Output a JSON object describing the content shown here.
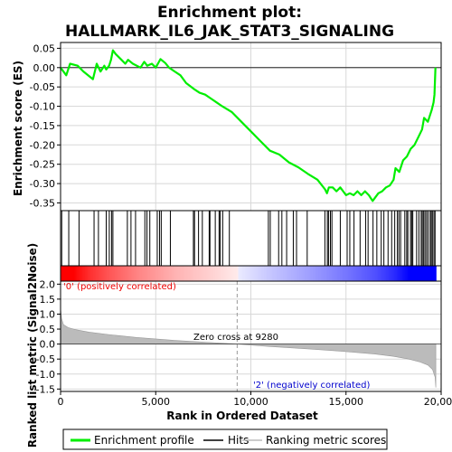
{
  "chart_data": {
    "type": "line",
    "title_line1": "Enrichment plot:",
    "title_line2": "HALLMARK_IL6_JAK_STAT3_SIGNALING",
    "es_panel": {
      "ylabel": "Enrichment score (ES)",
      "ylim": [
        -0.37,
        0.065
      ],
      "yticks": [
        0.05,
        0.0,
        -0.05,
        -0.1,
        -0.15,
        -0.2,
        -0.25,
        -0.3,
        -0.35
      ],
      "ytick_labels": [
        "0.05",
        "0.00",
        "-0.05",
        "-0.10",
        "-0.15",
        "-0.20",
        "-0.25",
        "-0.30",
        "-0.35"
      ],
      "x": [
        0,
        300,
        500,
        900,
        1200,
        1700,
        1900,
        2100,
        2300,
        2400,
        2550,
        2650,
        2750,
        2900,
        3200,
        3400,
        3550,
        3800,
        4200,
        4400,
        4550,
        4800,
        5000,
        5250,
        5500,
        5700,
        6000,
        6300,
        6600,
        7000,
        7300,
        7600,
        7900,
        8200,
        8500,
        9000,
        9500,
        10000,
        10500,
        11000,
        11500,
        12000,
        12500,
        13000,
        13500,
        13900,
        14000,
        14100,
        14300,
        14500,
        14700,
        15000,
        15200,
        15400,
        15600,
        15800,
        16000,
        16200,
        16400,
        16700,
        16900,
        17100,
        17300,
        17500,
        17600,
        17800,
        18000,
        18200,
        18400,
        18600,
        18800,
        19000,
        19100,
        19300,
        19500,
        19600,
        19650,
        19700
      ],
      "y": [
        0.0,
        -0.02,
        0.01,
        0.005,
        -0.01,
        -0.03,
        0.01,
        -0.01,
        0.005,
        -0.005,
        0.005,
        0.02,
        0.045,
        0.035,
        0.02,
        0.01,
        0.02,
        0.01,
        0.0,
        0.015,
        0.005,
        0.01,
        0.0,
        0.022,
        0.012,
        0.0,
        -0.01,
        -0.02,
        -0.04,
        -0.055,
        -0.065,
        -0.07,
        -0.08,
        -0.09,
        -0.1,
        -0.115,
        -0.14,
        -0.165,
        -0.19,
        -0.215,
        -0.225,
        -0.245,
        -0.258,
        -0.275,
        -0.29,
        -0.315,
        -0.325,
        -0.31,
        -0.31,
        -0.32,
        -0.31,
        -0.33,
        -0.325,
        -0.33,
        -0.32,
        -0.33,
        -0.32,
        -0.33,
        -0.345,
        -0.325,
        -0.32,
        -0.31,
        -0.305,
        -0.29,
        -0.26,
        -0.27,
        -0.24,
        -0.23,
        -0.21,
        -0.2,
        -0.18,
        -0.16,
        -0.13,
        -0.14,
        -0.11,
        -0.09,
        -0.07,
        0.0
      ]
    },
    "hits": [
      60,
      430,
      970,
      1760,
      1990,
      2400,
      2560,
      2680,
      2750,
      3510,
      3700,
      3940,
      4430,
      4540,
      4690,
      5080,
      5200,
      5290,
      5770,
      6980,
      7040,
      7250,
      7450,
      7810,
      7850,
      8130,
      8330,
      8390,
      8520,
      8870,
      10920,
      11020,
      11460,
      11630,
      11880,
      12230,
      12400,
      12960,
      13890,
      14020,
      14080,
      14180,
      14260,
      14700,
      15060,
      15200,
      15420,
      15740,
      16030,
      16160,
      16420,
      16620,
      16850,
      16990,
      17210,
      17400,
      17560,
      17700,
      17780,
      17870,
      18090,
      18190,
      18250,
      18390,
      18450,
      18510,
      18710,
      18830,
      18950,
      19010,
      19080,
      19150,
      19230,
      19310,
      19420,
      19480,
      19540,
      19620,
      19680
    ],
    "metric_panel": {
      "ylabel": "Ranked list metric (Signal2Noise)",
      "ylim": [
        -1.58,
        2.1
      ],
      "yticks": [
        2.0,
        1.5,
        1.0,
        0.5,
        0.0,
        -0.5,
        -1.0,
        -1.5
      ],
      "ytick_labels": [
        "2.0",
        "1.5",
        "1.0",
        "0.5",
        "0.0",
        "-0.5",
        "-1.0",
        "-1.5"
      ],
      "x": [
        0,
        50,
        150,
        400,
        800,
        1500,
        2500,
        4000,
        6000,
        8000,
        9280,
        11000,
        13000,
        15000,
        16500,
        17500,
        18300,
        18900,
        19300,
        19550,
        19680,
        19720
      ],
      "y": [
        1.2,
        0.85,
        0.65,
        0.55,
        0.48,
        0.4,
        0.32,
        0.22,
        0.12,
        0.05,
        0.0,
        -0.08,
        -0.16,
        -0.25,
        -0.33,
        -0.41,
        -0.5,
        -0.6,
        -0.7,
        -0.85,
        -1.1,
        -1.45
      ]
    },
    "xlabel": "Rank in Ordered Dataset",
    "xlim": [
      0,
      20000
    ],
    "xticks": [
      0,
      5000,
      10000,
      15000,
      20000
    ],
    "xtick_labels": [
      "0",
      "5,000",
      "10,000",
      "15,000",
      "20,000"
    ],
    "n_genes": 19700,
    "zero_cross": 9280,
    "annotations": {
      "positive": "'0' (positively correlated)",
      "negative": "'2' (negatively correlated)",
      "zero_cross": "Zero cross at 9280"
    },
    "legend": [
      {
        "label": "Enrichment profile",
        "color": "#00ee00"
      },
      {
        "label": "Hits",
        "color": "#000000"
      },
      {
        "label": "Ranking metric scores",
        "color": "#bbbbbb"
      }
    ],
    "colors": {
      "profile": "#00ee00",
      "positive": "#ee0000",
      "negative": "#0000cc",
      "metric_fill": "#bbbbbb"
    }
  }
}
